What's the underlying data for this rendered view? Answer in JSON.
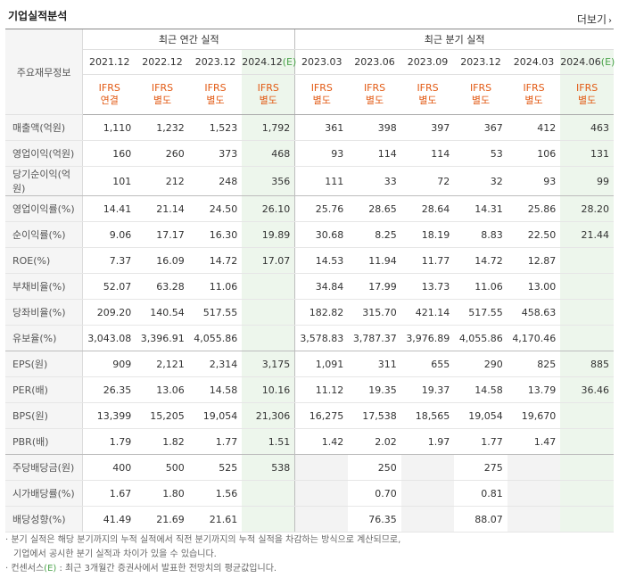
{
  "title": "기업실적분석",
  "more_label": "더보기",
  "row_head": "주요재무정보",
  "groups": {
    "annual": "최근 연간 실적",
    "quarter": "최근 분기 실적"
  },
  "annual_dates": [
    "2021.12",
    "2022.12",
    "2023.12",
    "2024.12"
  ],
  "quarter_dates": [
    "2023.03",
    "2023.06",
    "2023.09",
    "2023.12",
    "2024.03",
    "2024.06"
  ],
  "estimate_tag": "(E)",
  "ifrs": [
    "IFRS 연결",
    "IFRS 별도",
    "IFRS 별도",
    "IFRS 별도",
    "IFRS 별도",
    "IFRS 별도",
    "IFRS 별도",
    "IFRS 별도",
    "IFRS 별도",
    "IFRS 별도"
  ],
  "rows": [
    {
      "label": "매출액(억원)",
      "values": [
        "1,110",
        "1,232",
        "1,523",
        "1,792",
        "361",
        "398",
        "397",
        "367",
        "412",
        "463"
      ]
    },
    {
      "label": "영업이익(억원)",
      "values": [
        "160",
        "260",
        "373",
        "468",
        "93",
        "114",
        "114",
        "53",
        "106",
        "131"
      ]
    },
    {
      "label": "당기순이익(억원)",
      "values": [
        "101",
        "212",
        "248",
        "356",
        "111",
        "33",
        "72",
        "32",
        "93",
        "99"
      ]
    },
    {
      "label": "영업이익률(%)",
      "values": [
        "14.41",
        "21.14",
        "24.50",
        "26.10",
        "25.76",
        "28.65",
        "28.64",
        "14.31",
        "25.86",
        "28.20"
      ]
    },
    {
      "label": "순이익률(%)",
      "values": [
        "9.06",
        "17.17",
        "16.30",
        "19.89",
        "30.68",
        "8.25",
        "18.19",
        "8.83",
        "22.50",
        "21.44"
      ]
    },
    {
      "label": "ROE(%)",
      "values": [
        "7.37",
        "16.09",
        "14.72",
        "17.07",
        "14.53",
        "11.94",
        "11.77",
        "14.72",
        "12.87",
        ""
      ]
    },
    {
      "label": "부채비율(%)",
      "values": [
        "52.07",
        "63.28",
        "11.06",
        "",
        "34.84",
        "17.99",
        "13.73",
        "11.06",
        "13.00",
        ""
      ]
    },
    {
      "label": "당좌비율(%)",
      "values": [
        "209.20",
        "140.54",
        "517.55",
        "",
        "182.82",
        "315.70",
        "421.14",
        "517.55",
        "458.63",
        ""
      ]
    },
    {
      "label": "유보율(%)",
      "values": [
        "3,043.08",
        "3,396.91",
        "4,055.86",
        "",
        "3,578.83",
        "3,787.37",
        "3,976.89",
        "4,055.86",
        "4,170.46",
        ""
      ]
    },
    {
      "label": "EPS(원)",
      "values": [
        "909",
        "2,121",
        "2,314",
        "3,175",
        "1,091",
        "311",
        "655",
        "290",
        "825",
        "885"
      ]
    },
    {
      "label": "PER(배)",
      "values": [
        "26.35",
        "13.06",
        "14.58",
        "10.16",
        "11.12",
        "19.35",
        "19.37",
        "14.58",
        "13.79",
        "36.46"
      ]
    },
    {
      "label": "BPS(원)",
      "values": [
        "13,399",
        "15,205",
        "19,054",
        "21,306",
        "16,275",
        "17,538",
        "18,565",
        "19,054",
        "19,670",
        ""
      ]
    },
    {
      "label": "PBR(배)",
      "values": [
        "1.79",
        "1.82",
        "1.77",
        "1.51",
        "1.42",
        "2.02",
        "1.97",
        "1.77",
        "1.47",
        ""
      ]
    },
    {
      "label": "주당배당금(원)",
      "values": [
        "400",
        "500",
        "525",
        "538",
        "",
        "250",
        "",
        "275",
        "",
        ""
      ]
    },
    {
      "label": "시가배당률(%)",
      "values": [
        "1.67",
        "1.80",
        "1.56",
        "",
        "",
        "0.70",
        "",
        "0.81",
        "",
        ""
      ]
    },
    {
      "label": "배당성향(%)",
      "values": [
        "41.49",
        "21.69",
        "21.61",
        "",
        "",
        "76.35",
        "",
        "88.07",
        "",
        ""
      ]
    }
  ],
  "notes": {
    "line1": "분기 실적은 해당 분기까지의 누적 실적에서 직전 분기까지의 누적 실적을 차감하는 방식으로 계산되므로,",
    "line2": "기업에서 공시한 분기 실적과 차이가 있을 수 있습니다.",
    "line3_pre": "컨센서스",
    "line3_tag": "(E)",
    "line3_post": ": 최근 3개월간 증권사에서 발표한 전망치의 평균값입니다."
  }
}
